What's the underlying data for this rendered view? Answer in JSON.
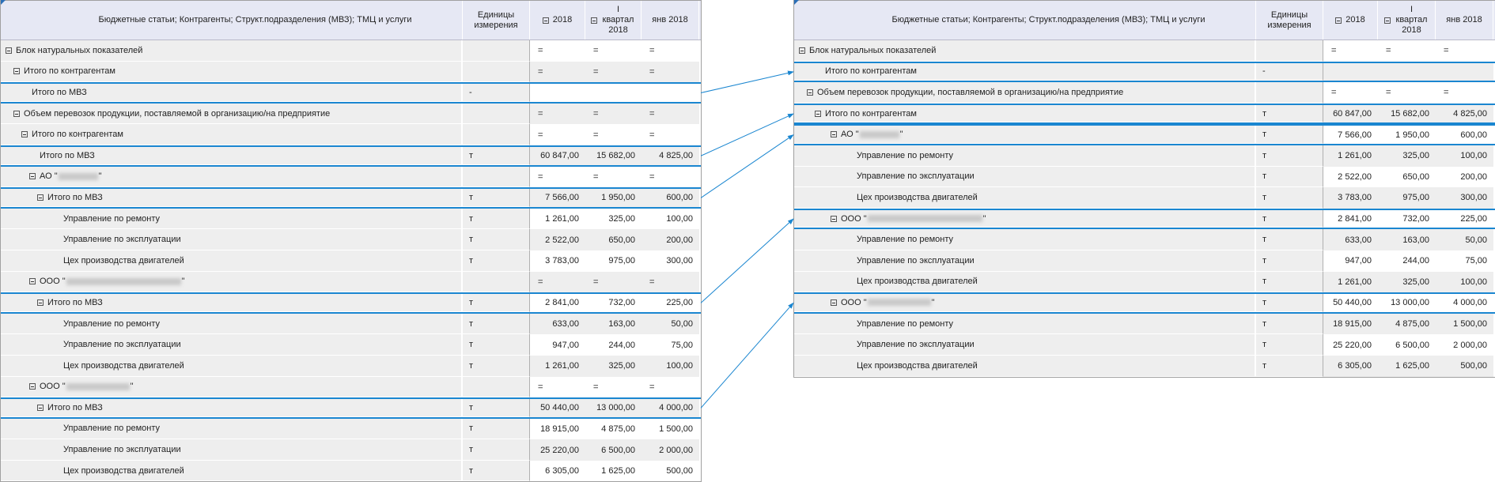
{
  "header": {
    "dimension_label": "Бюджетные статьи; Контрагенты; Структ.подразделения (МВЗ); ТМЦ и услуги",
    "units_label": "Единицы измерения",
    "col_year": "2018",
    "col_quarter": "I квартал 2018",
    "col_month": "янв 2018"
  },
  "accent_color": "#1a86d0",
  "left_table": {
    "rows": [
      {
        "label": "Блок натуральных показателей",
        "indent": 0,
        "toggle": true,
        "unit": "",
        "values": [
          "=",
          "=",
          "="
        ],
        "eq": true
      },
      {
        "label": "Итого по контрагентам",
        "indent": 1,
        "toggle": true,
        "unit": "",
        "values": [
          "=",
          "=",
          "="
        ],
        "eq": true
      },
      {
        "label": "Итого по МВЗ",
        "indent": 2,
        "toggle": false,
        "unit": "-",
        "values": [
          "",
          "",
          ""
        ],
        "hl": true
      },
      {
        "label": "Объем перевозок продукции, поставляемой в организацию/на предприятие",
        "indent": 1,
        "toggle": true,
        "unit": "",
        "values": [
          "=",
          "=",
          "="
        ],
        "eq": true
      },
      {
        "label": "Итого по контрагентам",
        "indent": 2,
        "toggle": true,
        "unit": "",
        "values": [
          "=",
          "=",
          "="
        ],
        "eq": true
      },
      {
        "label": "Итого по МВЗ",
        "indent": 3,
        "toggle": false,
        "unit": "т",
        "values": [
          "60 847,00",
          "15 682,00",
          "4 825,00"
        ],
        "hl": true
      },
      {
        "label": "АО \"",
        "suffix": "\"",
        "blur": 1,
        "indent": 3,
        "toggle": true,
        "unit": "",
        "values": [
          "=",
          "=",
          "="
        ],
        "eq": true
      },
      {
        "label": "Итого по МВЗ",
        "indent": 4,
        "toggle": true,
        "unit": "т",
        "values": [
          "7 566,00",
          "1 950,00",
          "600,00"
        ],
        "hl": true
      },
      {
        "label": "Управление по ремонту",
        "indent": 6,
        "toggle": false,
        "unit": "т",
        "values": [
          "1 261,00",
          "325,00",
          "100,00"
        ]
      },
      {
        "label": "Управление по эксплуатации",
        "indent": 6,
        "toggle": false,
        "unit": "т",
        "values": [
          "2 522,00",
          "650,00",
          "200,00"
        ]
      },
      {
        "label": "Цех производства двигателей",
        "indent": 6,
        "toggle": false,
        "unit": "т",
        "values": [
          "3 783,00",
          "975,00",
          "300,00"
        ]
      },
      {
        "label": "ООО \"",
        "suffix": "\"",
        "blur": 2,
        "indent": 3,
        "toggle": true,
        "unit": "",
        "values": [
          "=",
          "=",
          "="
        ],
        "eq": true
      },
      {
        "label": "Итого по МВЗ",
        "indent": 4,
        "toggle": true,
        "unit": "т",
        "values": [
          "2 841,00",
          "732,00",
          "225,00"
        ],
        "hl": true
      },
      {
        "label": "Управление по ремонту",
        "indent": 6,
        "toggle": false,
        "unit": "т",
        "values": [
          "633,00",
          "163,00",
          "50,00"
        ]
      },
      {
        "label": "Управление по эксплуатации",
        "indent": 6,
        "toggle": false,
        "unit": "т",
        "values": [
          "947,00",
          "244,00",
          "75,00"
        ]
      },
      {
        "label": "Цех производства двигателей",
        "indent": 6,
        "toggle": false,
        "unit": "т",
        "values": [
          "1 261,00",
          "325,00",
          "100,00"
        ]
      },
      {
        "label": "ООО \"",
        "suffix": "\"",
        "blur": 3,
        "indent": 3,
        "toggle": true,
        "unit": "",
        "values": [
          "=",
          "=",
          "="
        ],
        "eq": true
      },
      {
        "label": "Итого по МВЗ",
        "indent": 4,
        "toggle": true,
        "unit": "т",
        "values": [
          "50 440,00",
          "13 000,00",
          "4 000,00"
        ],
        "hl": true
      },
      {
        "label": "Управление по ремонту",
        "indent": 6,
        "toggle": false,
        "unit": "т",
        "values": [
          "18 915,00",
          "4 875,00",
          "1 500,00"
        ]
      },
      {
        "label": "Управление по эксплуатации",
        "indent": 6,
        "toggle": false,
        "unit": "т",
        "values": [
          "25 220,00",
          "6 500,00",
          "2 000,00"
        ]
      },
      {
        "label": "Цех производства двигателей",
        "indent": 6,
        "toggle": false,
        "unit": "т",
        "values": [
          "6 305,00",
          "1 625,00",
          "500,00"
        ]
      }
    ]
  },
  "right_table": {
    "rows": [
      {
        "label": "Блок натуральных показателей",
        "indent": 0,
        "toggle": true,
        "unit": "",
        "values": [
          "=",
          "=",
          "="
        ],
        "eq": true
      },
      {
        "label": "Итого по контрагентам",
        "indent": 2,
        "toggle": false,
        "unit": "-",
        "values": [
          "",
          "",
          ""
        ],
        "hl": true
      },
      {
        "label": "Объем перевозок продукции, поставляемой в организацию/на предприятие",
        "indent": 1,
        "toggle": true,
        "unit": "",
        "values": [
          "=",
          "=",
          "="
        ],
        "eq": true
      },
      {
        "label": "Итого по контрагентам",
        "indent": 2,
        "toggle": true,
        "unit": "т",
        "values": [
          "60 847,00",
          "15 682,00",
          "4 825,00"
        ],
        "hl": true
      },
      {
        "label": "АО \"",
        "suffix": "\"",
        "blur": 1,
        "indent": 4,
        "toggle": true,
        "unit": "т",
        "values": [
          "7 566,00",
          "1 950,00",
          "600,00"
        ],
        "hl": true
      },
      {
        "label": "Управление по ремонту",
        "indent": 6,
        "toggle": false,
        "unit": "т",
        "values": [
          "1 261,00",
          "325,00",
          "100,00"
        ]
      },
      {
        "label": "Управление по эксплуатации",
        "indent": 6,
        "toggle": false,
        "unit": "т",
        "values": [
          "2 522,00",
          "650,00",
          "200,00"
        ]
      },
      {
        "label": "Цех производства двигателей",
        "indent": 6,
        "toggle": false,
        "unit": "т",
        "values": [
          "3 783,00",
          "975,00",
          "300,00"
        ]
      },
      {
        "label": "ООО \"",
        "suffix": "\"",
        "blur": 2,
        "indent": 4,
        "toggle": true,
        "unit": "т",
        "values": [
          "2 841,00",
          "732,00",
          "225,00"
        ],
        "hl": true
      },
      {
        "label": "Управление по ремонту",
        "indent": 6,
        "toggle": false,
        "unit": "т",
        "values": [
          "633,00",
          "163,00",
          "50,00"
        ]
      },
      {
        "label": "Управление по эксплуатации",
        "indent": 6,
        "toggle": false,
        "unit": "т",
        "values": [
          "947,00",
          "244,00",
          "75,00"
        ]
      },
      {
        "label": "Цех производства двигателей",
        "indent": 6,
        "toggle": false,
        "unit": "т",
        "values": [
          "1 261,00",
          "325,00",
          "100,00"
        ]
      },
      {
        "label": "ООО \"",
        "suffix": "\"",
        "blur": 3,
        "indent": 4,
        "toggle": true,
        "unit": "т",
        "values": [
          "50 440,00",
          "13 000,00",
          "4 000,00"
        ],
        "hl": true
      },
      {
        "label": "Управление по ремонту",
        "indent": 6,
        "toggle": false,
        "unit": "т",
        "values": [
          "18 915,00",
          "4 875,00",
          "1 500,00"
        ]
      },
      {
        "label": "Управление по эксплуатации",
        "indent": 6,
        "toggle": false,
        "unit": "т",
        "values": [
          "25 220,00",
          "6 500,00",
          "2 000,00"
        ]
      },
      {
        "label": "Цех производства двигателей",
        "indent": 6,
        "toggle": false,
        "unit": "т",
        "values": [
          "6 305,00",
          "1 625,00",
          "500,00"
        ]
      }
    ]
  },
  "mapping": [
    [
      2,
      1
    ],
    [
      5,
      3
    ],
    [
      7,
      4
    ],
    [
      12,
      8
    ],
    [
      17,
      12
    ]
  ]
}
